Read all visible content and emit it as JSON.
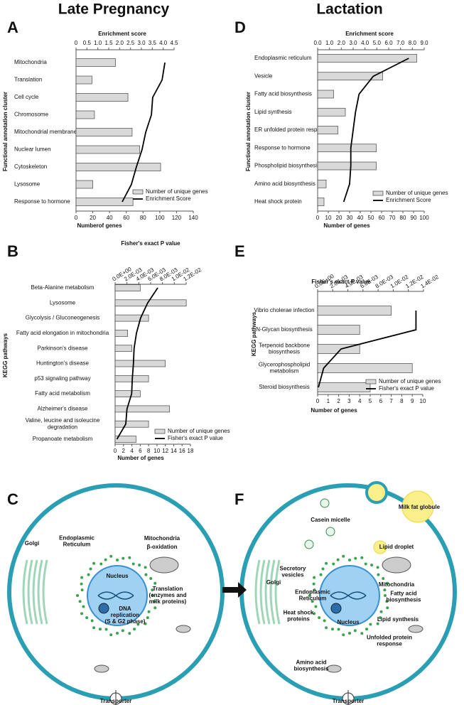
{
  "headers": [
    "Late Pregnancy",
    "Lactation"
  ],
  "panel_labels": [
    "A",
    "B",
    "C",
    "D",
    "E",
    "F"
  ],
  "chart_data": [
    {
      "type": "combo",
      "y_label": "Functional annotation cluster",
      "x_label": "Numberof genes",
      "x2_label": "Enrichment score",
      "categories": [
        "Mitochondria",
        "Translation",
        "Cell cycle",
        "Chromosome",
        "Mitochondrial membrane",
        "Nuclear lumen",
        "Cytoskeleton",
        "Lysosome",
        "Response to hormone"
      ],
      "series": [
        {
          "name": "Number of unique genes",
          "type": "bar",
          "color": "#d9d9d9",
          "values": [
            47,
            19,
            62,
            22,
            67,
            76,
            101,
            20,
            68
          ]
        },
        {
          "name": "Enrichment Score",
          "type": "line",
          "axis": "x2",
          "color": "#000000",
          "values": [
            4.08,
            3.95,
            3.52,
            3.46,
            3.2,
            3.03,
            2.77,
            2.54,
            2.12
          ]
        }
      ],
      "xlim": [
        0,
        140
      ],
      "xticks": [
        0,
        20,
        40,
        60,
        80,
        100,
        120,
        140
      ],
      "x2lim": [
        0,
        4.5
      ],
      "x2ticks": [
        0,
        0.5,
        {
          "value": 1,
          "label": "1.0"
        },
        1.5,
        {
          "value": 2,
          "label": "2.0"
        },
        2.5,
        {
          "value": 3,
          "label": "3.0"
        },
        3.5,
        {
          "value": 4,
          "label": "4.0"
        },
        4.5
      ],
      "legend": "lower-right"
    },
    {
      "type": "combo",
      "y_label": "KEGG pathways",
      "x_label": "Number of genes",
      "x2_label": "Fisher's exact P value",
      "categories": [
        "Beta-Alanine metabolism",
        "Lysosome",
        "Glycolysis / Gluconeogenesis",
        "Fatty acid elongation in mitochondria",
        "Parkinson's disease",
        "Huntington's disease",
        "p53 signaling pathway",
        "Fatty acid metabolism",
        "Alzheimer's disease",
        "Valine, leucine and isoleucine\ndegradation",
        "Propanoate metabolism"
      ],
      "series": [
        {
          "name": "Number of unique genes",
          "type": "bar",
          "color": "#d9d9d9",
          "values": [
            6,
            17,
            8,
            3,
            4,
            12,
            8,
            6,
            13,
            8,
            5
          ]
        },
        {
          "name": "Fisher's exact P value",
          "type": "line",
          "axis": "x2",
          "color": "#000000",
          "values": [
            0.0072,
            0.0055,
            0.0043,
            0.0036,
            0.0032,
            0.0031,
            0.0029,
            0.0028,
            0.002,
            0.0018,
            0.0003
          ]
        }
      ],
      "xlim": [
        0,
        18
      ],
      "xticks": [
        0,
        2,
        4,
        6,
        8,
        10,
        12,
        14,
        16,
        18
      ],
      "x2lim": [
        0,
        0.012
      ],
      "x2ticks": [
        {
          "value": 0,
          "label": "0.0E+00"
        },
        {
          "value": 0.002,
          "label": "2.0E-03"
        },
        {
          "value": 0.004,
          "label": "4.0E-03"
        },
        {
          "value": 0.006,
          "label": "6.0E-03"
        },
        {
          "value": 0.008,
          "label": "8.0E-03"
        },
        {
          "value": 0.01,
          "label": "1.0E-02"
        },
        {
          "value": 0.012,
          "label": "1.2E-02"
        }
      ],
      "legend": "lower-right"
    },
    {
      "type": "combo",
      "y_label": "Functional annotation cluster",
      "x_label": "Number of genes",
      "x2_label": "Enrichment score",
      "categories": [
        "Endoplasmic reticulum",
        "Vesicle",
        "Fatty acid biosynthesis",
        "Lipid synthesis",
        "ER unfolded protein response",
        "Response to hormone",
        "Phospholipid biosynthesis",
        "Amino acid biosynthesis",
        "Heat shock protein"
      ],
      "series": [
        {
          "name": "Number of unique genes",
          "type": "bar",
          "color": "#d9d9d9",
          "values": [
            93,
            61,
            15,
            26,
            19,
            55,
            55,
            8,
            6
          ]
        },
        {
          "name": "Enrichment Score",
          "type": "line",
          "axis": "x2",
          "color": "#000000",
          "values": [
            7.7,
            4.7,
            3.5,
            3.2,
            3.0,
            2.8,
            2.8,
            2.7,
            2.2
          ]
        }
      ],
      "xlim": [
        0,
        100
      ],
      "xticks": [
        0,
        10,
        20,
        30,
        40,
        50,
        60,
        70,
        80,
        90,
        100
      ],
      "x2lim": [
        0,
        9
      ],
      "x2ticks": [
        {
          "value": 0,
          "label": "0.0"
        },
        {
          "value": 1,
          "label": "1.0"
        },
        {
          "value": 2,
          "label": "2.0"
        },
        {
          "value": 3,
          "label": "3.0"
        },
        {
          "value": 4,
          "label": "4.0"
        },
        {
          "value": 5,
          "label": "5.0"
        },
        {
          "value": 6,
          "label": "6.0"
        },
        {
          "value": 7,
          "label": "7.0"
        },
        {
          "value": 8,
          "label": "8.0"
        },
        {
          "value": 9,
          "label": "9.0"
        }
      ],
      "legend": "lower-right"
    },
    {
      "type": "combo",
      "y_label": "KEGG pathways",
      "x_label": "Number of genes",
      "x2_label": "Fisher's exact P value",
      "categories": [
        "Vibrio cholerae infection",
        "N-Glycan biosynthesis",
        "Terpenoid backbone\nbiosynthesis",
        "Glycerophospholipid\nmetabolism",
        "Steroid biosynthesis"
      ],
      "series": [
        {
          "name": "Number of unique genes",
          "type": "bar",
          "color": "#d9d9d9",
          "values": [
            7,
            4,
            4,
            9,
            5
          ]
        },
        {
          "name": "Fisher's exact P value",
          "type": "line",
          "axis": "x2",
          "color": "#000000",
          "values": [
            0.013,
            0.013,
            0.0031,
            0.0008,
            0.0001
          ]
        }
      ],
      "xlim": [
        0,
        10
      ],
      "xticks": [
        0,
        1,
        2,
        3,
        4,
        5,
        6,
        7,
        8,
        9,
        10
      ],
      "x2lim": [
        0,
        0.014
      ],
      "x2ticks": [
        {
          "value": 0,
          "label": "0.0E+00"
        },
        {
          "value": 0.002,
          "label": "2.0E-03"
        },
        {
          "value": 0.004,
          "label": "4.0E-03"
        },
        {
          "value": 0.006,
          "label": "6.0E-03"
        },
        {
          "value": 0.008,
          "label": "8.0E-03"
        },
        {
          "value": 0.01,
          "label": "1.0E-02"
        },
        {
          "value": 0.012,
          "label": "1.2E-02"
        },
        {
          "value": 0.014,
          "label": "1.4E-02"
        }
      ],
      "legend": "lower-right"
    }
  ],
  "diagrams": {
    "late_pregnancy": {
      "labels": [
        "Golgi",
        "Endoplasmic\nReticulum",
        "Mitochondria",
        "β-oxidation",
        "Nucleus",
        "DNA\nreplication\n(S & G2 phase)",
        "Translation\n(enzymes and\nmilk proteins)",
        "Transporter"
      ]
    },
    "lactation": {
      "labels": [
        "Casein micelle",
        "Milk fat globule",
        "Lipid droplet",
        "Secretory\nvesicles",
        "Golgi",
        "Endoplasmic\nReticulum",
        "Mitochondria",
        "Fatty acid\nbiosynthesis",
        "Lipid synthesis",
        "Heat shock\nproteins",
        "Nucleus",
        "Unfolded protein\nresponse",
        "Amino acid\nbiosynthesis",
        "Transporter"
      ]
    }
  }
}
